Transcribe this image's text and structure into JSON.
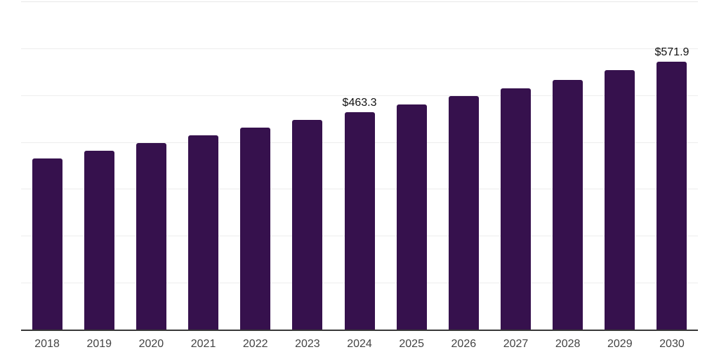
{
  "chart_data": {
    "type": "bar",
    "title": "",
    "xlabel": "",
    "ylabel": "",
    "categories": [
      "2018",
      "2019",
      "2020",
      "2021",
      "2022",
      "2023",
      "2024",
      "2025",
      "2026",
      "2027",
      "2028",
      "2029",
      "2030"
    ],
    "values": [
      365.4,
      381.9,
      398.2,
      414.0,
      430.3,
      446.6,
      463.3,
      480.6,
      497.5,
      514.9,
      533.2,
      553.0,
      571.9
    ],
    "bar_labels": [
      "",
      "",
      "",
      "",
      "",
      "",
      "$463.3",
      "",
      "",
      "",
      "",
      "",
      "$571.9"
    ],
    "ylim": [
      0,
      700
    ],
    "gridline_values": [
      100,
      200,
      300,
      400,
      500,
      600,
      700
    ],
    "grid": true,
    "legend": false,
    "y_tick_labels_shown": false,
    "colors": {
      "bar": "#36114d",
      "axis_line": "#383838",
      "gridline": "#ededed",
      "top_gridline": "#e7e7e7",
      "tick_label": "#444444",
      "value_label": "#111111",
      "background": "#ffffff"
    }
  }
}
